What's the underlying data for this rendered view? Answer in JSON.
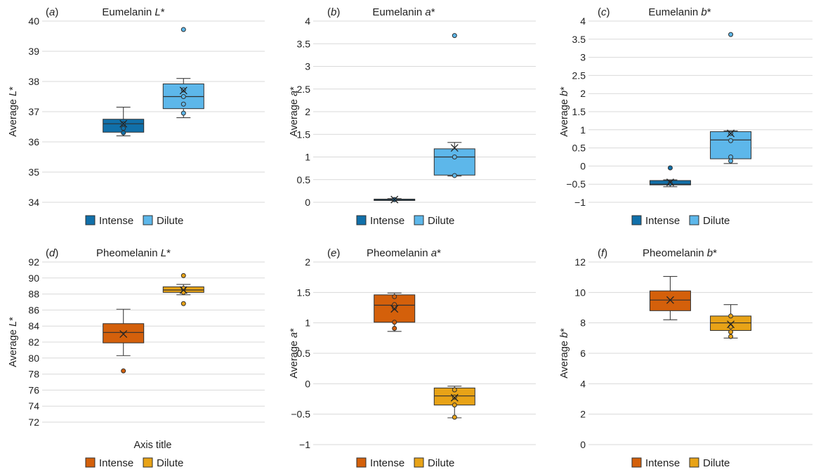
{
  "figure": {
    "legend_position": "bottom-center",
    "panels": [
      {
        "id": "a",
        "panel_label": "a",
        "title_main": "Eumelanin ",
        "title_ital": "L",
        "title_tail": "*",
        "ylabel_main": "Average ",
        "ylabel_ital": "L",
        "ylabel_tail": "*",
        "xlabel": "",
        "minus_glyph": "",
        "yticks": [
          34,
          35,
          36,
          37,
          38,
          39,
          40
        ],
        "ytick_labels": [
          "34",
          "35",
          "36",
          "37",
          "38",
          "39",
          "40"
        ],
        "ylim": [
          34,
          40
        ],
        "groups": [
          {
            "name": "Intense",
            "color": "#1170aa",
            "min": 36.2,
            "q1": 36.32,
            "median": 36.6,
            "q3": 36.75,
            "max": 37.15,
            "mean": 36.6,
            "points": [
              36.3,
              36.6,
              36.45
            ]
          },
          {
            "name": "Dilute",
            "color": "#5db7ea",
            "min": 36.8,
            "q1": 37.1,
            "median": 37.5,
            "q3": 37.92,
            "max": 38.1,
            "mean": 37.7,
            "points": [
              39.72,
              37.72,
              37.5,
              37.25,
              36.95
            ]
          }
        ],
        "legend": [
          "Intense",
          "Dilute"
        ]
      },
      {
        "id": "b",
        "panel_label": "b",
        "title_main": "Eumelanin ",
        "title_ital": "a",
        "title_tail": "*",
        "ylabel_main": "Average ",
        "ylabel_ital": "a",
        "ylabel_tail": "*",
        "xlabel": "",
        "minus_glyph": "",
        "yticks": [
          0,
          0.5,
          1,
          1.5,
          2,
          2.5,
          3,
          3.5,
          4
        ],
        "ytick_labels": [
          "0",
          "0.5",
          "1",
          "1.5",
          "2",
          "2.5",
          "3",
          "3.5",
          "4"
        ],
        "ylim": [
          0,
          4
        ],
        "groups": [
          {
            "name": "Intense",
            "color": "#1170aa",
            "min": 0.04,
            "q1": 0.05,
            "median": 0.06,
            "q3": 0.07,
            "max": 0.08,
            "mean": 0.06,
            "points": [
              0.06
            ]
          },
          {
            "name": "Dilute",
            "color": "#5db7ea",
            "min": 0.58,
            "q1": 0.6,
            "median": 1.0,
            "q3": 1.18,
            "max": 1.32,
            "mean": 1.2,
            "points": [
              3.68,
              1.0,
              0.59
            ]
          }
        ],
        "legend": [
          "Intense",
          "Dilute"
        ]
      },
      {
        "id": "c",
        "panel_label": "c",
        "title_main": "Eumelanin ",
        "title_ital": "b",
        "title_tail": "*",
        "ylabel_main": "Average ",
        "ylabel_ital": "b",
        "ylabel_tail": "*",
        "xlabel": "",
        "minus_glyph": "−",
        "yticks": [
          -1,
          -0.5,
          0,
          0.5,
          1,
          1.5,
          2,
          2.5,
          3,
          3.5,
          4
        ],
        "ytick_labels": [
          "−1",
          "−0.5",
          "0",
          "0.5",
          "1",
          "1.5",
          "2",
          "2.5",
          "3",
          "3.5",
          "4"
        ],
        "ylim": [
          -1,
          4
        ],
        "groups": [
          {
            "name": "Intense",
            "color": "#1170aa",
            "min": -0.57,
            "q1": -0.52,
            "median": -0.5,
            "q3": -0.4,
            "max": -0.38,
            "mean": -0.45,
            "points": [
              -0.05,
              -0.48
            ]
          },
          {
            "name": "Dilute",
            "color": "#5db7ea",
            "min": 0.07,
            "q1": 0.2,
            "median": 0.72,
            "q3": 0.95,
            "max": 0.97,
            "mean": 0.9,
            "points": [
              3.63,
              0.9,
              0.7,
              0.25,
              0.14
            ]
          }
        ],
        "legend": [
          "Intense",
          "Dilute"
        ]
      },
      {
        "id": "d",
        "panel_label": "d",
        "title_main": "Pheomelanin ",
        "title_ital": "L",
        "title_tail": "*",
        "ylabel_main": "Average ",
        "ylabel_ital": "L",
        "ylabel_tail": "*",
        "xlabel": "Axis title",
        "minus_glyph": "",
        "yticks": [
          72,
          74,
          76,
          78,
          80,
          82,
          84,
          86,
          88,
          90,
          92
        ],
        "ytick_labels": [
          "72",
          "74",
          "76",
          "78",
          "80",
          "82",
          "84",
          "86",
          "88",
          "90",
          "92"
        ],
        "ylim": [
          72,
          92
        ],
        "groups": [
          {
            "name": "Intense",
            "color": "#d4600b",
            "min": 80.3,
            "q1": 81.9,
            "median": 83.2,
            "q3": 84.3,
            "max": 86.1,
            "mean": 83.0,
            "points": [
              78.4
            ]
          },
          {
            "name": "Dilute",
            "color": "#e8a317",
            "min": 87.9,
            "q1": 88.2,
            "median": 88.5,
            "q3": 88.9,
            "max": 89.2,
            "mean": 88.5,
            "points": [
              90.3,
              88.7,
              88.2,
              86.8
            ]
          }
        ],
        "legend": [
          "Intense",
          "Dilute"
        ]
      },
      {
        "id": "e",
        "panel_label": "e",
        "title_main": "Pheomelanin ",
        "title_ital": "a",
        "title_tail": "*",
        "ylabel_main": "Average ",
        "ylabel_ital": "a",
        "ylabel_tail": "*",
        "xlabel": "",
        "minus_glyph": "−",
        "yticks": [
          -1,
          -0.5,
          0,
          0.5,
          1,
          1.5,
          2
        ],
        "ytick_labels": [
          "−1",
          "−0.5",
          "0",
          "0.5",
          "1",
          "1.5",
          "2"
        ],
        "ylim": [
          -1,
          2
        ],
        "groups": [
          {
            "name": "Intense",
            "color": "#d4600b",
            "min": 0.86,
            "q1": 1.01,
            "median": 1.29,
            "q3": 1.46,
            "max": 1.49,
            "mean": 1.23,
            "points": [
              1.43,
              1.3,
              1.25,
              1.01,
              0.91
            ]
          },
          {
            "name": "Dilute",
            "color": "#e8a317",
            "min": -0.56,
            "q1": -0.35,
            "median": -0.2,
            "q3": -0.07,
            "max": -0.04,
            "mean": -0.23,
            "points": [
              -0.1,
              -0.22,
              -0.35,
              -0.55
            ]
          }
        ],
        "legend": [
          "Intense",
          "Dilute"
        ]
      },
      {
        "id": "f",
        "panel_label": "f",
        "title_main": "Pheomelanin ",
        "title_ital": "b",
        "title_tail": "*",
        "ylabel_main": "Average ",
        "ylabel_ital": "b",
        "ylabel_tail": "*",
        "xlabel": "",
        "minus_glyph": "",
        "yticks": [
          0,
          2,
          4,
          6,
          8,
          10,
          12
        ],
        "ytick_labels": [
          "0",
          "2",
          "4",
          "6",
          "8",
          "10",
          "12"
        ],
        "ylim": [
          0,
          12
        ],
        "groups": [
          {
            "name": "Intense",
            "color": "#d4600b",
            "min": 8.2,
            "q1": 8.8,
            "median": 9.5,
            "q3": 10.1,
            "max": 11.05,
            "mean": 9.5,
            "points": []
          },
          {
            "name": "Dilute",
            "color": "#e8a317",
            "min": 7.0,
            "q1": 7.5,
            "median": 8.0,
            "q3": 8.45,
            "max": 9.2,
            "mean": 7.9,
            "points": [
              8.45,
              7.75,
              7.4,
              7.1
            ]
          }
        ],
        "legend": [
          "Intense",
          "Dilute"
        ]
      }
    ]
  },
  "chart_data": [
    {
      "type": "box",
      "panel": "a",
      "title": "Eumelanin L*",
      "ylabel": "Average L*",
      "ylim": [
        34,
        40
      ],
      "series": [
        {
          "name": "Intense",
          "min": 36.2,
          "q1": 36.32,
          "median": 36.6,
          "q3": 36.75,
          "max": 37.15,
          "mean": 36.6
        },
        {
          "name": "Dilute",
          "min": 36.8,
          "q1": 37.1,
          "median": 37.5,
          "q3": 37.92,
          "max": 38.1,
          "mean": 37.7,
          "outliers": [
            39.72
          ]
        }
      ]
    },
    {
      "type": "box",
      "panel": "b",
      "title": "Eumelanin a*",
      "ylabel": "Average a*",
      "ylim": [
        0,
        4
      ],
      "series": [
        {
          "name": "Intense",
          "min": 0.04,
          "q1": 0.05,
          "median": 0.06,
          "q3": 0.07,
          "max": 0.08,
          "mean": 0.06
        },
        {
          "name": "Dilute",
          "min": 0.58,
          "q1": 0.6,
          "median": 1.0,
          "q3": 1.18,
          "max": 1.32,
          "mean": 1.2,
          "outliers": [
            3.68
          ]
        }
      ]
    },
    {
      "type": "box",
      "panel": "c",
      "title": "Eumelanin b*",
      "ylabel": "Average b*",
      "ylim": [
        -1,
        4
      ],
      "series": [
        {
          "name": "Intense",
          "min": -0.57,
          "q1": -0.52,
          "median": -0.5,
          "q3": -0.4,
          "max": -0.38,
          "mean": -0.45,
          "outliers": [
            -0.05
          ]
        },
        {
          "name": "Dilute",
          "min": 0.07,
          "q1": 0.2,
          "median": 0.72,
          "q3": 0.95,
          "max": 0.97,
          "mean": 0.9,
          "outliers": [
            3.63
          ]
        }
      ]
    },
    {
      "type": "box",
      "panel": "d",
      "title": "Pheomelanin L*",
      "ylabel": "Average L*",
      "xlabel": "Axis title",
      "ylim": [
        72,
        92
      ],
      "series": [
        {
          "name": "Intense",
          "min": 80.3,
          "q1": 81.9,
          "median": 83.2,
          "q3": 84.3,
          "max": 86.1,
          "mean": 83.0,
          "outliers": [
            78.4
          ]
        },
        {
          "name": "Dilute",
          "min": 87.9,
          "q1": 88.2,
          "median": 88.5,
          "q3": 88.9,
          "max": 89.2,
          "mean": 88.5,
          "outliers": [
            90.3,
            86.8
          ]
        }
      ]
    },
    {
      "type": "box",
      "panel": "e",
      "title": "Pheomelanin a*",
      "ylabel": "Average a*",
      "ylim": [
        -1,
        2
      ],
      "series": [
        {
          "name": "Intense",
          "min": 0.86,
          "q1": 1.01,
          "median": 1.29,
          "q3": 1.46,
          "max": 1.49,
          "mean": 1.23
        },
        {
          "name": "Dilute",
          "min": -0.56,
          "q1": -0.35,
          "median": -0.2,
          "q3": -0.07,
          "max": -0.04,
          "mean": -0.23
        }
      ]
    },
    {
      "type": "box",
      "panel": "f",
      "title": "Pheomelanin b*",
      "ylabel": "Average b*",
      "ylim": [
        0,
        12
      ],
      "series": [
        {
          "name": "Intense",
          "min": 8.2,
          "q1": 8.8,
          "median": 9.5,
          "q3": 10.1,
          "max": 11.05,
          "mean": 9.5
        },
        {
          "name": "Dilute",
          "min": 7.0,
          "q1": 7.5,
          "median": 8.0,
          "q3": 8.45,
          "max": 9.2,
          "mean": 7.9
        }
      ]
    }
  ]
}
